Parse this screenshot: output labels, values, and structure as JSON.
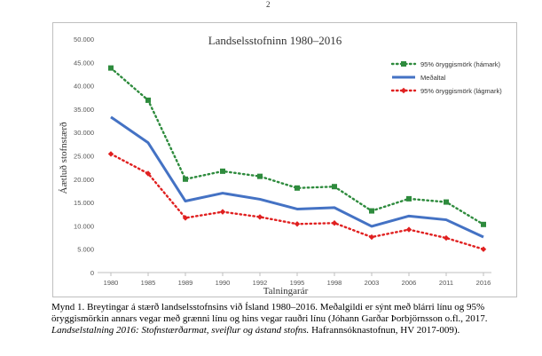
{
  "page_number": "2",
  "chart_data": {
    "type": "line",
    "title": "Landselsstofninn 1980–2016",
    "xlabel": "Talningarár",
    "ylabel": "Áætluð stofnstærð",
    "categories": [
      "1980",
      "1985",
      "1989",
      "1990",
      "1992",
      "1995",
      "1998",
      "2003",
      "2006",
      "2011",
      "2016"
    ],
    "y_ticks": [
      "0",
      "5.000",
      "10.000",
      "15.000",
      "20.000",
      "25.000",
      "30.000",
      "35.000",
      "40.000",
      "45.000",
      "50.000"
    ],
    "ylim": [
      0,
      50000
    ],
    "grid": false,
    "legend_position": "top-right",
    "series": [
      {
        "name": "95% öryggismörk (hámark)",
        "color": "#2e8b3d",
        "style": "dotted",
        "marker": "square",
        "values": [
          43800,
          36900,
          20000,
          21700,
          20600,
          18100,
          18400,
          13200,
          15800,
          15100,
          10300
        ]
      },
      {
        "name": "Meðaltal",
        "color": "#4472c4",
        "style": "solid",
        "marker": "none",
        "values": [
          33300,
          27800,
          15300,
          17000,
          15700,
          13600,
          13900,
          9900,
          12100,
          11300,
          7600
        ]
      },
      {
        "name": "95% öryggismörk (lágmark)",
        "color": "#e02020",
        "style": "dotted",
        "marker": "diamond",
        "values": [
          25400,
          21200,
          11700,
          13000,
          11900,
          10400,
          10600,
          7600,
          9200,
          7400,
          5000
        ]
      }
    ]
  },
  "caption": {
    "lead": "Mynd 1. Breytingar á stærð landselsstofnsins við Ísland 1980–2016. Meðalgildi er sýnt með blárri línu og 95% öryggismörkin annars vegar með grænni línu og hins vegar rauðri línu (Jóhann Garðar Þorbjörnsson o.fl., 2017. ",
    "title": "Landselstalning 2016: Stofnstærðarmat, sveiflur og ástand stofns.",
    "tail": " Hafrannsóknastofnun, HV 2017-009)."
  }
}
